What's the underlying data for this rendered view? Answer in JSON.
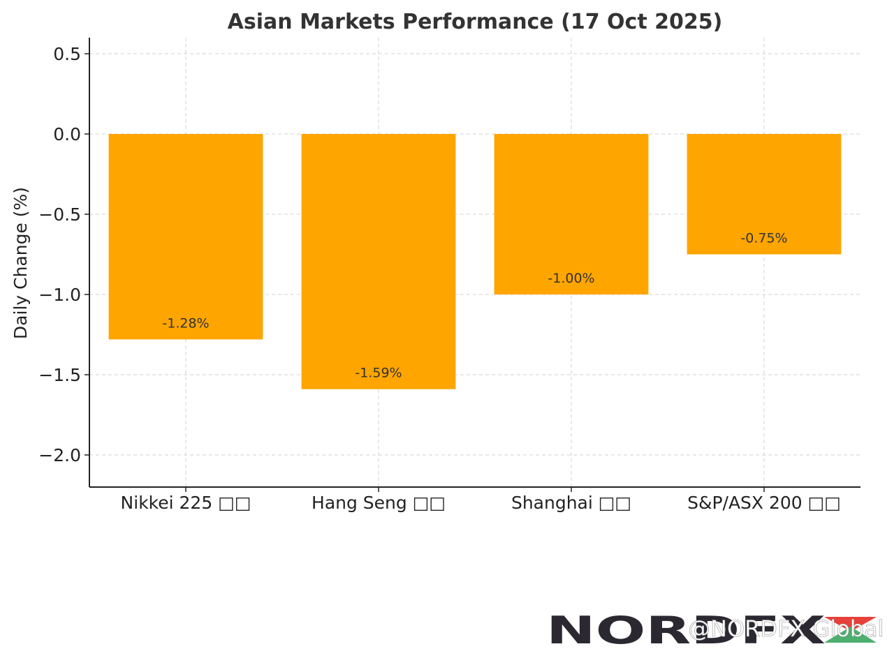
{
  "chart_data": {
    "type": "bar",
    "title": "Asian Markets Performance (17 Oct 2025)",
    "xlabel": "",
    "ylabel": "Daily Change (%)",
    "categories": [
      "Nikkei 225 □□",
      "Hang Seng □□",
      "Shanghai □□",
      "S&P/ASX 200 □□"
    ],
    "values": [
      -1.28,
      -1.59,
      -1.0,
      -0.75
    ],
    "data_labels": [
      "-1.28%",
      "-1.59%",
      "-1.00%",
      "-0.75%"
    ],
    "ylim": [
      -2.2,
      0.6
    ],
    "yticks": [
      0.5,
      0.0,
      -0.5,
      -1.0,
      -1.5,
      -2.0
    ],
    "ytick_labels": [
      "0.5",
      "0.0",
      "−0.5",
      "−1.0",
      "−1.5",
      "−2.0"
    ],
    "grid": true,
    "bar_color": "#FFA500"
  },
  "watermark": {
    "logo": "NORDFX",
    "handle": "@NORDFX Global"
  }
}
